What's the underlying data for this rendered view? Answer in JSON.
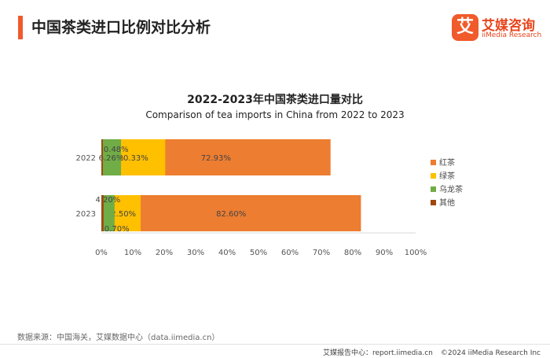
{
  "header": {
    "title": "中国茶类进口比例对比分析",
    "logo_mark": "艾",
    "logo_name": "艾媒咨询",
    "logo_en": "iiMedia Research"
  },
  "chart_data": {
    "type": "bar",
    "orientation": "horizontal",
    "stacked": true,
    "title": "2022-2023年中国茶类进口量对比",
    "subtitle": "Comparison of tea imports in China from 2022 to 2023",
    "categories": [
      "2022",
      "2023"
    ],
    "series": [
      {
        "name": "红茶",
        "color": "#ed7d31",
        "values": [
          72.93,
          82.6
        ],
        "labels": [
          "72.93%",
          "82.60%"
        ]
      },
      {
        "name": "绿茶",
        "color": "#ffc000",
        "values": [
          20.33,
          12.5
        ],
        "labels": [
          "20.33%",
          "12.50%"
        ]
      },
      {
        "name": "乌龙茶",
        "color": "#70ad47",
        "values": [
          6.26,
          4.2
        ],
        "labels": [
          "6.26%",
          "4.20%"
        ]
      },
      {
        "name": "其他",
        "color": "#9e480e",
        "values": [
          0.48,
          0.7
        ],
        "labels": [
          "0.48%",
          "0.70%"
        ]
      }
    ],
    "xlim": [
      0,
      100
    ],
    "xticks": [
      "0%",
      "10%",
      "20%",
      "30%",
      "40%",
      "50%",
      "60%",
      "70%",
      "80%",
      "90%",
      "100%"
    ],
    "legend": "right",
    "grid": false
  },
  "footer": {
    "source": "数据来源：中国海关，艾媒数据中心（data.iimedia.cn）",
    "report": "艾媒报告中心：report.iimedia.cn",
    "copyright": "©2024  iiMedia Research  Inc"
  }
}
